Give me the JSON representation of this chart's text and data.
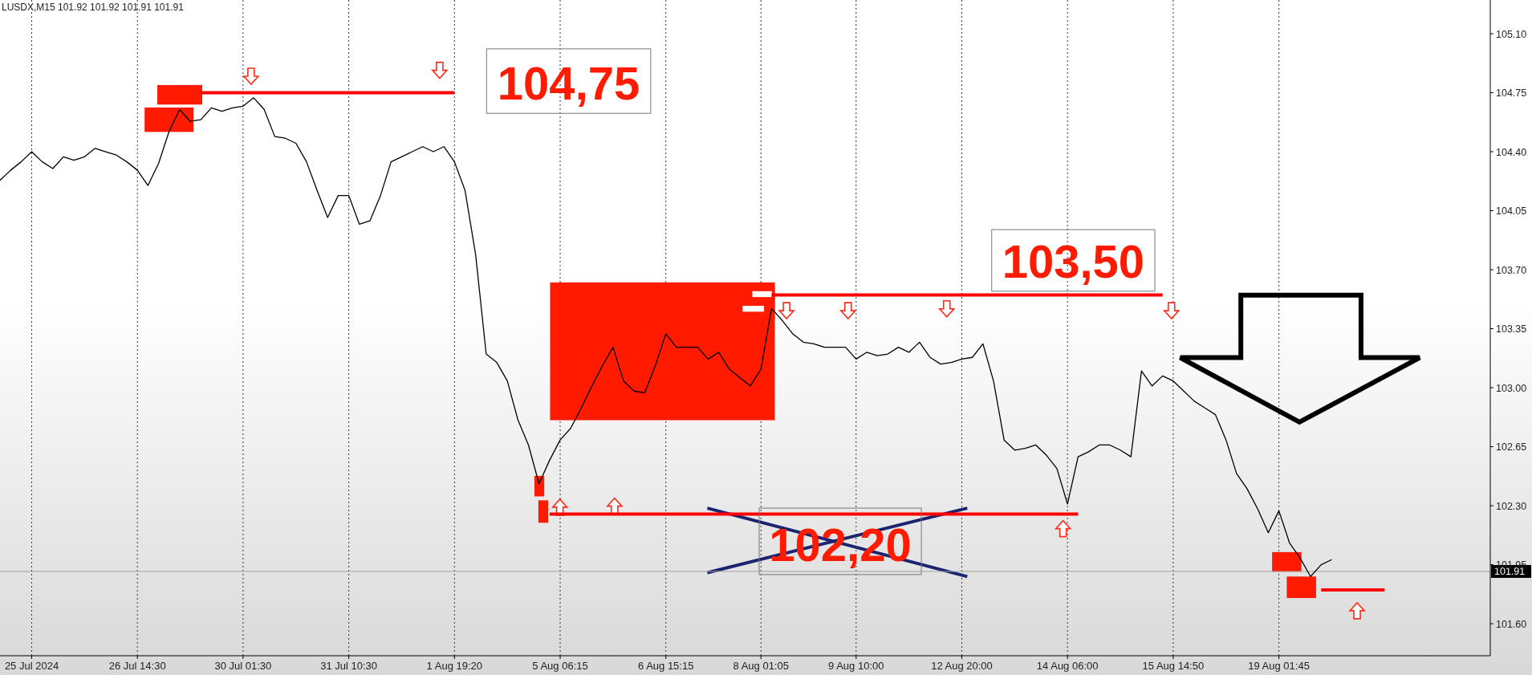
{
  "chart_data": {
    "type": "line",
    "title": "LUSDX,M15  101.92 101.92 101.91 101.91",
    "categories": [
      null,
      null,
      null,
      "25 Jul 2024",
      null,
      null,
      null,
      null,
      null,
      null,
      null,
      null,
      null,
      "26 Jul 14:30",
      null,
      null,
      null,
      null,
      null,
      null,
      null,
      null,
      null,
      "30 Jul 01:30",
      null,
      null,
      null,
      null,
      null,
      null,
      null,
      null,
      null,
      "31 Jul 10:30",
      null,
      null,
      null,
      null,
      null,
      null,
      null,
      null,
      null,
      "1 Aug 19:20",
      null,
      null,
      null,
      null,
      null,
      null,
      null,
      null,
      null,
      "5 Aug 06:15",
      null,
      null,
      null,
      null,
      null,
      null,
      null,
      null,
      null,
      "6 Aug 15:15",
      null,
      null,
      null,
      null,
      null,
      null,
      null,
      null,
      "8 Aug 01:05",
      null,
      null,
      null,
      null,
      null,
      null,
      null,
      null,
      "9 Aug 10:00",
      null,
      null,
      null,
      null,
      null,
      null,
      null,
      null,
      null,
      "12 Aug 20:00",
      null,
      null,
      null,
      null,
      null,
      null,
      null,
      null,
      null,
      "14 Aug 06:00",
      null,
      null,
      null,
      null,
      null,
      null,
      null,
      null,
      null,
      "15 Aug 14:50",
      null,
      null,
      null,
      null,
      null,
      null,
      null,
      null,
      null,
      "19 Aug 01:45",
      null,
      null,
      null,
      null,
      null,
      null,
      null,
      null,
      null,
      null,
      null,
      null,
      null,
      null,
      null,
      null,
      null,
      null,
      null,
      null
    ],
    "series": [
      {
        "color": "#000000",
        "values": [
          104.23,
          104.29,
          104.34,
          104.4,
          104.34,
          104.3,
          104.37,
          104.35,
          104.37,
          104.42,
          104.4,
          104.38,
          104.34,
          104.29,
          104.2,
          104.33,
          104.52,
          104.65,
          104.58,
          104.59,
          104.66,
          104.64,
          104.66,
          104.67,
          104.72,
          104.65,
          104.49,
          104.48,
          104.45,
          104.34,
          104.17,
          104.01,
          104.14,
          104.14,
          103.97,
          103.99,
          104.14,
          104.34,
          104.37,
          104.4,
          104.43,
          104.4,
          104.43,
          104.34,
          104.17,
          103.79,
          103.2,
          103.15,
          103.04,
          102.81,
          102.66,
          102.43,
          102.57,
          102.69,
          102.76,
          102.88,
          103.01,
          103.13,
          103.24,
          103.04,
          102.98,
          102.97,
          103.13,
          103.32,
          103.24,
          103.24,
          103.24,
          103.17,
          103.21,
          103.11,
          103.06,
          103.01,
          103.11,
          103.47,
          103.4,
          103.32,
          103.27,
          103.26,
          103.24,
          103.24,
          103.24,
          103.17,
          103.21,
          103.19,
          103.2,
          103.24,
          103.21,
          103.27,
          103.18,
          103.14,
          103.15,
          103.17,
          103.18,
          103.26,
          103.04,
          102.69,
          102.63,
          102.64,
          102.66,
          102.6,
          102.52,
          102.31,
          102.59,
          102.62,
          102.66,
          102.66,
          102.63,
          102.59,
          103.1,
          103.01,
          103.07,
          103.04,
          102.98,
          102.92,
          102.88,
          102.84,
          102.69,
          102.49,
          102.4,
          102.28,
          102.14,
          102.27,
          102.08,
          101.99,
          101.88,
          101.95,
          101.98,
          null,
          null,
          null,
          null,
          null,
          null,
          null,
          null,
          null,
          null,
          null,
          null,
          null,
          null,
          null
        ]
      },
      {
        "color": "#ff0000",
        "values": [
          null,
          null,
          null,
          null,
          null,
          null,
          null,
          null,
          null,
          null,
          null,
          null,
          null,
          null,
          null,
          null,
          null,
          null,
          null,
          104.75,
          104.75,
          104.75,
          104.75,
          104.75,
          104.75,
          104.75,
          104.75,
          104.75,
          104.75,
          104.75,
          104.75,
          104.75,
          104.75,
          104.75,
          104.75,
          104.75,
          104.75,
          104.75,
          104.75,
          104.75,
          104.75,
          104.75,
          104.75,
          104.75,
          null,
          null,
          null,
          null,
          null,
          null,
          null,
          null,
          null,
          null,
          null,
          null,
          null,
          null,
          null,
          null,
          null,
          null,
          null,
          null,
          null,
          null,
          null,
          null,
          null,
          null,
          null,
          null,
          null,
          null,
          null,
          null,
          null,
          null,
          null,
          null,
          null,
          null,
          null,
          null,
          null,
          null,
          null,
          null,
          null,
          null,
          null,
          null,
          null,
          null,
          null,
          null,
          null,
          null,
          null,
          null,
          null,
          null,
          null,
          null,
          null,
          null,
          null,
          null,
          null,
          null,
          null,
          null,
          null,
          null,
          null,
          null,
          null,
          null,
          null,
          null,
          null,
          null,
          null,
          null,
          null,
          null,
          null,
          null,
          null,
          null,
          null,
          null,
          null,
          null,
          null,
          null,
          null,
          null,
          null,
          null,
          null,
          null
        ]
      },
      {
        "color": "#ff0000",
        "values": [
          null,
          null,
          null,
          null,
          null,
          null,
          null,
          null,
          null,
          null,
          null,
          null,
          null,
          null,
          null,
          null,
          null,
          null,
          null,
          null,
          null,
          null,
          null,
          null,
          null,
          null,
          null,
          null,
          null,
          null,
          null,
          null,
          null,
          null,
          null,
          null,
          null,
          null,
          null,
          null,
          null,
          null,
          null,
          null,
          null,
          null,
          null,
          null,
          null,
          null,
          null,
          null,
          null,
          null,
          null,
          null,
          null,
          null,
          null,
          null,
          null,
          null,
          null,
          null,
          null,
          null,
          null,
          null,
          null,
          null,
          null,
          null,
          null,
          103.55,
          103.55,
          103.55,
          103.55,
          103.55,
          103.55,
          103.55,
          103.55,
          103.55,
          103.55,
          103.55,
          103.55,
          103.55,
          103.55,
          103.55,
          103.55,
          103.55,
          103.55,
          103.55,
          103.55,
          103.55,
          103.55,
          103.55,
          103.55,
          103.55,
          103.55,
          103.55,
          103.55,
          103.55,
          103.55,
          103.55,
          103.55,
          103.55,
          103.55,
          103.55,
          103.55,
          103.55,
          103.55,
          null,
          null,
          null,
          null,
          null,
          null,
          null,
          null,
          null,
          null,
          null,
          null,
          null,
          null,
          null,
          null,
          null,
          null,
          null,
          null,
          null,
          null,
          null,
          null,
          null,
          null,
          null,
          null,
          null,
          null,
          null
        ]
      },
      {
        "color": "#ff0000",
        "values": [
          null,
          null,
          null,
          null,
          null,
          null,
          null,
          null,
          null,
          null,
          null,
          null,
          null,
          null,
          null,
          null,
          null,
          null,
          null,
          null,
          null,
          null,
          null,
          null,
          null,
          null,
          null,
          null,
          null,
          null,
          null,
          null,
          null,
          null,
          null,
          null,
          null,
          null,
          null,
          null,
          null,
          null,
          null,
          null,
          null,
          null,
          null,
          null,
          null,
          null,
          null,
          null,
          102.25,
          102.25,
          102.25,
          102.25,
          102.25,
          102.25,
          102.25,
          102.25,
          102.25,
          102.25,
          102.25,
          102.25,
          102.25,
          102.25,
          102.25,
          102.25,
          102.25,
          102.25,
          102.25,
          102.25,
          102.25,
          102.25,
          102.25,
          102.25,
          102.25,
          102.25,
          102.25,
          102.25,
          102.25,
          102.25,
          102.25,
          102.25,
          102.25,
          102.25,
          102.25,
          102.25,
          102.25,
          102.25,
          102.25,
          102.25,
          102.25,
          102.25,
          102.25,
          102.25,
          102.25,
          102.25,
          102.25,
          102.25,
          102.25,
          102.25,
          102.25,
          null,
          null,
          null,
          null,
          null,
          null,
          null,
          null,
          null,
          null,
          null,
          null,
          null,
          null,
          null,
          null,
          null,
          null,
          null,
          null,
          null,
          null,
          null,
          null,
          null,
          null,
          null,
          null,
          null,
          null,
          null,
          null,
          null,
          null,
          null,
          null,
          null,
          null,
          null
        ]
      },
      {
        "color": "#ff0000",
        "values": [
          null,
          null,
          null,
          null,
          null,
          null,
          null,
          null,
          null,
          null,
          null,
          null,
          null,
          null,
          null,
          null,
          null,
          null,
          null,
          null,
          null,
          null,
          null,
          null,
          null,
          null,
          null,
          null,
          null,
          null,
          null,
          null,
          null,
          null,
          null,
          null,
          null,
          null,
          null,
          null,
          null,
          null,
          null,
          null,
          null,
          null,
          null,
          null,
          null,
          null,
          null,
          null,
          null,
          null,
          null,
          null,
          null,
          null,
          null,
          null,
          null,
          null,
          null,
          null,
          null,
          null,
          null,
          null,
          null,
          null,
          null,
          null,
          null,
          null,
          null,
          null,
          null,
          null,
          null,
          null,
          null,
          null,
          null,
          null,
          null,
          null,
          null,
          null,
          null,
          null,
          null,
          null,
          null,
          null,
          null,
          null,
          null,
          null,
          null,
          null,
          null,
          null,
          null,
          null,
          null,
          null,
          null,
          null,
          null,
          null,
          null,
          null,
          null,
          null,
          null,
          null,
          null,
          null,
          null,
          null,
          null,
          null,
          null,
          null,
          null,
          101.8,
          101.8,
          101.8,
          101.8,
          101.8,
          101.8,
          101.8,
          null,
          null,
          null,
          null,
          null,
          null,
          null,
          null,
          null,
          null
        ]
      }
    ],
    "ylim": [
      101.41,
      105.3
    ],
    "yticks": [
      {
        "value": 105.1,
        "label": "105.10"
      },
      104.75,
      {
        "value": 104.4,
        "label": "104.40"
      },
      104.05,
      {
        "value": 103.7,
        "label": "103.70"
      },
      103.35,
      {
        "value": 103.0,
        "label": "103.00"
      },
      102.65,
      {
        "value": 102.3,
        "label": "102.30"
      },
      101.95,
      {
        "value": 101.6,
        "label": "101.60"
      }
    ],
    "grid": "x",
    "ref_lines": [
      {
        "axis": "y",
        "value": 101.91,
        "label": "101.91",
        "color": "#a0a0a0"
      }
    ],
    "annotations": [
      "104,75",
      "103,50",
      "102,20"
    ]
  }
}
